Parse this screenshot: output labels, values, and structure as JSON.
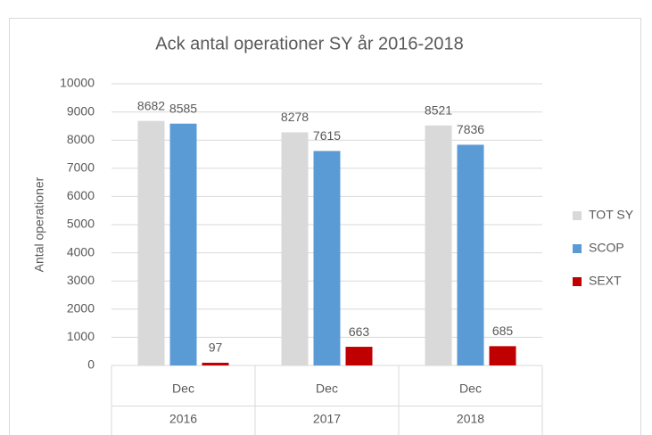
{
  "chart_data": {
    "type": "bar",
    "title": "Ack antal operationer SY år 2016-2018",
    "y_label": "Antal operationer",
    "categories": [
      "Dec",
      "Dec",
      "Dec"
    ],
    "groups": [
      "2016",
      "2017",
      "2018"
    ],
    "series": [
      {
        "name": "TOT SY",
        "color": "#d9d9d9",
        "values": [
          8682,
          8278,
          8521
        ]
      },
      {
        "name": "SCOP",
        "color": "#5b9bd5",
        "values": [
          8585,
          7615,
          7836
        ]
      },
      {
        "name": "SEXT",
        "color": "#c00000",
        "values": [
          97,
          663,
          685
        ]
      }
    ],
    "ylim": [
      0,
      10000
    ],
    "yticks": [
      0,
      1000,
      2000,
      3000,
      4000,
      5000,
      6000,
      7000,
      8000,
      9000,
      10000
    ],
    "grid": true,
    "legend": "right"
  }
}
